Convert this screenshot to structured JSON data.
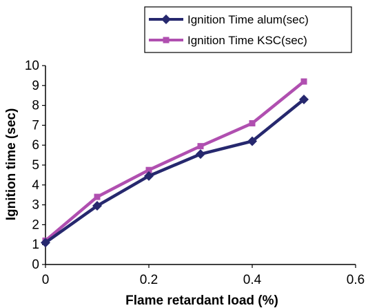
{
  "chart_data": {
    "type": "line",
    "xlabel": "Flame retardant load (%)",
    "ylabel": "Ignition time (sec)",
    "xlim": [
      0,
      0.6
    ],
    "ylim": [
      0,
      10
    ],
    "xticks": [
      "0",
      "0.2",
      "0.4",
      "0.6"
    ],
    "yticks": [
      "0",
      "1",
      "2",
      "3",
      "4",
      "5",
      "6",
      "7",
      "8",
      "9",
      "10"
    ],
    "grid": false,
    "legend_position": "top-right",
    "series": [
      {
        "name": "Ignition Time alum(sec)",
        "color": "#26286e",
        "marker": "diamond",
        "x": [
          0,
          0.1,
          0.2,
          0.3,
          0.4,
          0.5
        ],
        "y": [
          1.1,
          2.95,
          4.45,
          5.55,
          6.2,
          8.3
        ]
      },
      {
        "name": "Ignition Time KSC(sec)",
        "color": "#b04fb0",
        "marker": "square",
        "x": [
          0,
          0.1,
          0.2,
          0.3,
          0.4,
          0.5
        ],
        "y": [
          1.2,
          3.4,
          4.75,
          5.95,
          7.1,
          9.2
        ]
      }
    ]
  }
}
